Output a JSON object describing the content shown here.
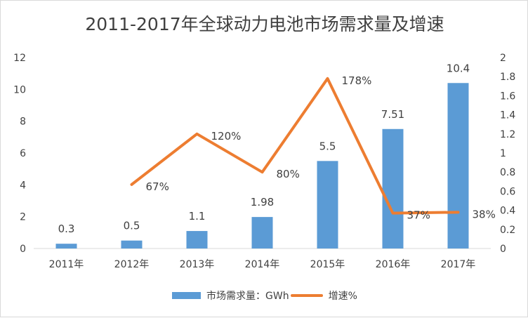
{
  "chart_data": {
    "type": "bar+line",
    "title": "2011-2017年全球动力电池市场需求量及增速",
    "categories": [
      "2011年",
      "2012年",
      "2013年",
      "2014年",
      "2015年",
      "2016年",
      "2017年"
    ],
    "series": [
      {
        "name": "市场需求量：GWh",
        "type": "bar",
        "axis": "left",
        "color": "#5b9bd5",
        "values": [
          0.3,
          0.5,
          1.1,
          1.98,
          5.5,
          7.51,
          10.4
        ],
        "labels": [
          "0.3",
          "0.5",
          "1.1",
          "1.98",
          "5.5",
          "7.51",
          "10.4"
        ]
      },
      {
        "name": "增速%",
        "type": "line",
        "axis": "right",
        "color": "#ed7d31",
        "values": [
          null,
          0.67,
          1.2,
          0.8,
          1.78,
          0.37,
          0.38
        ],
        "labels": [
          "",
          "67%",
          "120%",
          "80%",
          "178%",
          "37%",
          "38%"
        ]
      }
    ],
    "y_left": {
      "range": [
        0,
        12
      ],
      "ticks": [
        "0",
        "2",
        "4",
        "6",
        "8",
        "10",
        "12"
      ]
    },
    "y_right": {
      "range": [
        0,
        2
      ],
      "ticks": [
        "0",
        "0.2",
        "0.4",
        "0.6",
        "0.8",
        "1",
        "1.2",
        "1.4",
        "1.6",
        "1.8",
        "2"
      ]
    },
    "grid": false,
    "legend": "bottom"
  }
}
